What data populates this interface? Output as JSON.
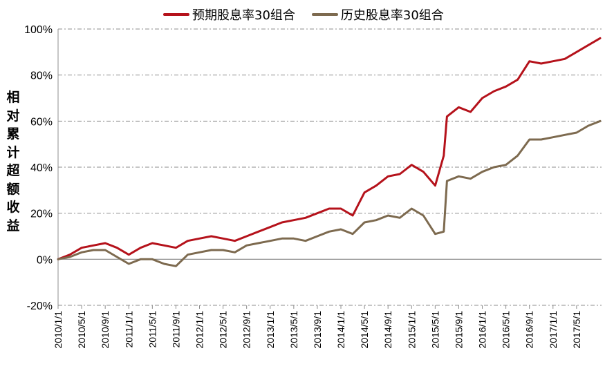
{
  "chart_data": {
    "type": "line",
    "title": "",
    "ylabel": "相对累计超额收益",
    "xlabel": "",
    "ylim": [
      -0.2,
      1.0
    ],
    "yticks": [
      "-20%",
      "0%",
      "20%",
      "40%",
      "60%",
      "80%",
      "100%"
    ],
    "yticks_values": [
      -0.2,
      0.0,
      0.2,
      0.4,
      0.6,
      0.8,
      1.0
    ],
    "x_tick_labels": [
      "2010/1/1",
      "2010/5/1",
      "2010/9/1",
      "2011/1/1",
      "2011/5/1",
      "2011/9/1",
      "2012/1/1",
      "2012/5/1",
      "2012/9/1",
      "2013/1/1",
      "2013/5/1",
      "2013/9/1",
      "2014/1/1",
      "2014/5/1",
      "2014/9/1",
      "2015/1/1",
      "2015/5/1",
      "2015/9/1",
      "2016/1/1",
      "2016/5/1",
      "2016/9/1",
      "2017/1/1",
      "2017/5/1"
    ],
    "grid": true,
    "legend_position": "top",
    "x": [
      "2010/1/1",
      "2010/3/1",
      "2010/5/1",
      "2010/7/1",
      "2010/9/1",
      "2010/11/1",
      "2011/1/1",
      "2011/3/1",
      "2011/5/1",
      "2011/7/1",
      "2011/9/1",
      "2011/11/1",
      "2012/1/1",
      "2012/3/1",
      "2012/5/1",
      "2012/7/1",
      "2012/9/1",
      "2012/11/1",
      "2013/1/1",
      "2013/3/1",
      "2013/5/1",
      "2013/7/1",
      "2013/9/1",
      "2013/11/1",
      "2014/1/1",
      "2014/3/1",
      "2014/5/1",
      "2014/7/1",
      "2014/9/1",
      "2014/11/1",
      "2015/1/1",
      "2015/3/1",
      "2015/5/1",
      "2015/6/15",
      "2015/7/1",
      "2015/9/1",
      "2015/11/1",
      "2016/1/1",
      "2016/3/1",
      "2016/5/1",
      "2016/7/1",
      "2016/9/1",
      "2016/11/1",
      "2017/1/1",
      "2017/3/1",
      "2017/5/1",
      "2017/7/1",
      "2017/9/1"
    ],
    "series": [
      {
        "name": "预期股息率30组合",
        "color": "#b5121b",
        "values": [
          0.0,
          0.02,
          0.05,
          0.06,
          0.07,
          0.05,
          0.02,
          0.05,
          0.07,
          0.06,
          0.05,
          0.08,
          0.09,
          0.1,
          0.09,
          0.08,
          0.1,
          0.12,
          0.14,
          0.16,
          0.17,
          0.18,
          0.2,
          0.22,
          0.22,
          0.19,
          0.29,
          0.32,
          0.36,
          0.37,
          0.41,
          0.38,
          0.32,
          0.45,
          0.62,
          0.66,
          0.64,
          0.7,
          0.73,
          0.75,
          0.78,
          0.86,
          0.85,
          0.86,
          0.87,
          0.9,
          0.93,
          0.96
        ]
      },
      {
        "name": "历史股息率30组合",
        "color": "#7d6a4f",
        "values": [
          0.0,
          0.01,
          0.03,
          0.04,
          0.04,
          0.01,
          -0.02,
          0.0,
          0.0,
          -0.02,
          -0.03,
          0.02,
          0.03,
          0.04,
          0.04,
          0.03,
          0.06,
          0.07,
          0.08,
          0.09,
          0.09,
          0.08,
          0.1,
          0.12,
          0.13,
          0.11,
          0.16,
          0.17,
          0.19,
          0.18,
          0.22,
          0.19,
          0.11,
          0.12,
          0.34,
          0.36,
          0.35,
          0.38,
          0.4,
          0.41,
          0.45,
          0.52,
          0.52,
          0.53,
          0.54,
          0.55,
          0.58,
          0.6
        ]
      }
    ]
  }
}
